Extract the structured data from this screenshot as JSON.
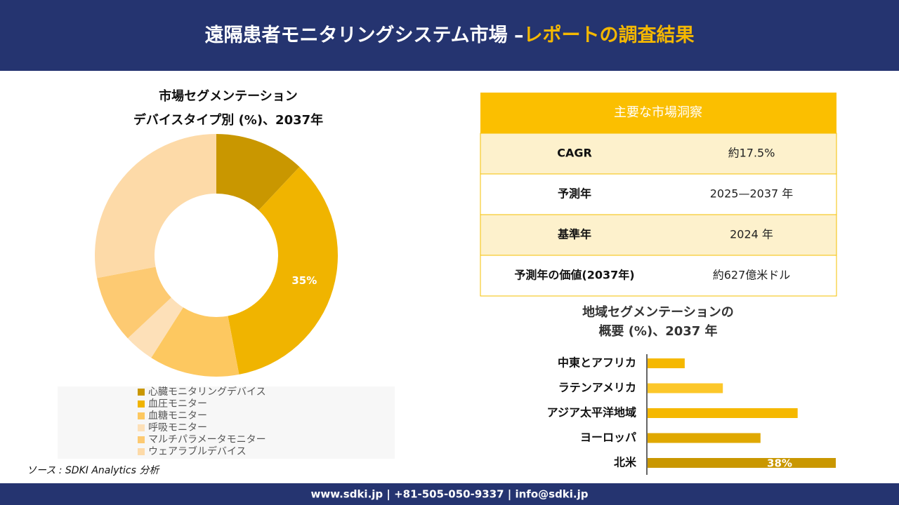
{
  "header": {
    "title_main": "遠隔患者モニタリングシステム市場 –",
    "title_accent": "レポートの調査結果"
  },
  "chart_data": [
    {
      "type": "donut",
      "title_line1": "市場セグメンテーション",
      "title_line2": "デバイスタイプ別 (%)、2037年",
      "categories": [
        "心臓モニタリングデバイス",
        "血圧モニター",
        "血糖モニター",
        "呼吸モニター",
        "マルチパラメータモニター",
        "ウェアラブルデバイス"
      ],
      "values": [
        12,
        35,
        12,
        4,
        9,
        28
      ],
      "value_labels": [
        null,
        "35%",
        null,
        null,
        null,
        null
      ],
      "colors": [
        "#c99700",
        "#f0b400",
        "#fdc860",
        "#fde0b8",
        "#fdca72",
        "#fddaa8"
      ]
    },
    {
      "type": "hbar",
      "title_line1": "地域セグメンテーションの",
      "title_line2": "概要 (%)、2037 年",
      "categories": [
        "中東とアフリカ",
        "ラテンアメリカ",
        "アジア太平洋地域",
        "ヨーロッパ",
        "北米"
      ],
      "values": [
        7.5,
        15.2,
        30.3,
        22.8,
        38
      ],
      "value_labels": [
        null,
        null,
        null,
        null,
        "38%"
      ],
      "colors": [
        "#f5b800",
        "#fcc72a",
        "#f5b800",
        "#e0a800",
        "#c99700"
      ],
      "xlim": [
        0,
        38
      ]
    }
  ],
  "table": {
    "header": "主要な市場洞察",
    "rows": [
      [
        "CAGR",
        "約17.5%"
      ],
      [
        "予測年",
        "2025—2037 年"
      ],
      [
        "基準年",
        "2024 年"
      ],
      [
        "予測年の価値(2037年)",
        "約627億米ドル"
      ]
    ]
  },
  "source": "ソース : SDKI Analytics 分析",
  "footer": "www.sdki.jp | +81-505-050-9337 | info@sdki.jp"
}
